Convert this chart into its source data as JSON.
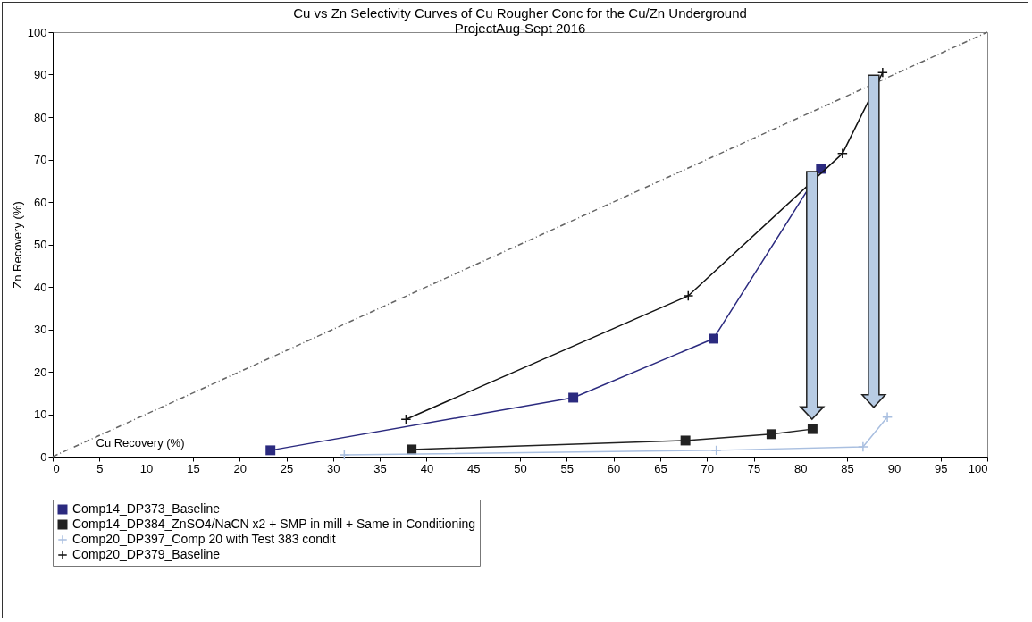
{
  "chart_data": {
    "type": "line",
    "title": "Cu vs Zn Selectivity Curves of Cu Rougher Conc for the Cu/Zn Underground ProjectAug-Sept 2016",
    "xlabel": "Cu Recovery (%)",
    "ylabel": "Zn Recovery (%)",
    "xlim": [
      0,
      100
    ],
    "xticks": [
      0,
      5,
      10,
      15,
      20,
      25,
      30,
      35,
      40,
      45,
      50,
      55,
      60,
      65,
      70,
      75,
      80,
      85,
      90,
      95,
      100
    ],
    "ylim": [
      0,
      100
    ],
    "yticks": [
      0,
      10,
      20,
      30,
      40,
      50,
      60,
      70,
      80,
      90,
      100
    ],
    "grid": false,
    "legend": "bottom",
    "series": [
      {
        "name": "Comp14_DP373_Baseline",
        "color": "#2b2a7f",
        "marker": "square",
        "x": [
          23.3,
          55.7,
          70.7,
          82.2
        ],
        "values": [
          1.5,
          13.9,
          27.8,
          67.8
        ]
      },
      {
        "name": "Comp14_DP384_ZnSO4/NaCN x2 + SMP in mill + Same in Conditioning",
        "color": "#222222",
        "marker": "square",
        "x": [
          38.4,
          67.7,
          76.9,
          81.3
        ],
        "values": [
          1.7,
          3.8,
          5.3,
          6.5
        ]
      },
      {
        "name": "Comp20_DP397_Comp 20 with Test 383 condit",
        "color": "#a9bfe0",
        "marker": "cross",
        "x": [
          31.2,
          71.0,
          86.7,
          89.3
        ],
        "values": [
          0.4,
          1.5,
          2.3,
          9.3
        ]
      },
      {
        "name": "Comp20_DP379_Baseline",
        "color": "#111111",
        "marker": "cross",
        "x": [
          37.8,
          68.0,
          84.5,
          88.8
        ],
        "values": [
          8.8,
          37.9,
          71.4,
          90.5
        ]
      },
      {
        "color": "#666666",
        "marker": "none",
        "line_style": "dashed",
        "x": [
          0,
          100
        ],
        "values": [
          0,
          100
        ]
      }
    ]
  }
}
